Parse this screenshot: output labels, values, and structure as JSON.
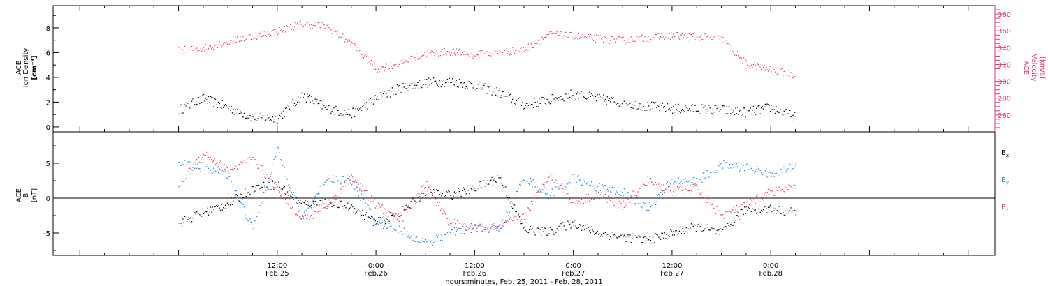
{
  "colors": {
    "black": "#000000",
    "blue": "#1e88e5",
    "red": "#e8386b"
  },
  "xaxis": {
    "tick_times": [
      "12:00",
      "0:00",
      "12:00",
      "0:00",
      "12:00",
      "0:00"
    ],
    "tick_dates": [
      "Feb.25",
      "Feb.26",
      "Feb.26",
      "Feb.27",
      "Feb.27",
      "Feb.28"
    ],
    "label": "hours:minutes, Feb. 25, 2011 - Feb. 28, 2011",
    "range_hours": [
      -15.25,
      99.25
    ],
    "ticks_hours": [
      12,
      24,
      36,
      48,
      60,
      72
    ]
  },
  "chart_data": [
    {
      "type": "scatter",
      "panel": "top",
      "ylabel_left": [
        "ACE",
        "Ion Density",
        "[cm⁻³]"
      ],
      "ylabel_right": [
        "ACE",
        "Velocity",
        "[km/s]"
      ],
      "left_axis": {
        "ylim": [
          -0.4,
          9.8
        ],
        "ticks": [
          0,
          2,
          4,
          6,
          8
        ]
      },
      "right_axis": {
        "ylim": [
          240,
          390
        ],
        "ticks": [
          260,
          280,
          300,
          320,
          340,
          360,
          380
        ]
      },
      "series": [
        {
          "axis": "left",
          "color": "#000000",
          "x": [
            0,
            3,
            6,
            9,
            12,
            15,
            18,
            21,
            24,
            27,
            30,
            33,
            36,
            39,
            42,
            45,
            48,
            51,
            54,
            57,
            60,
            63,
            66,
            69,
            72,
            75
          ],
          "y": [
            1.4,
            2.3,
            1.6,
            0.8,
            0.7,
            2.6,
            1.5,
            1.1,
            2.3,
            3.2,
            3.6,
            3.7,
            3.4,
            2.8,
            1.8,
            2.2,
            2.7,
            2.3,
            2.0,
            1.7,
            1.5,
            1.5,
            1.4,
            1.2,
            1.6,
            0.8
          ]
        },
        {
          "axis": "right",
          "color": "#e8386b",
          "x": [
            0,
            3,
            6,
            9,
            12,
            15,
            18,
            21,
            24,
            27,
            30,
            33,
            36,
            39,
            42,
            45,
            48,
            51,
            54,
            57,
            60,
            63,
            66,
            69,
            72,
            75
          ],
          "y": [
            337,
            340,
            348,
            354,
            360,
            369,
            366,
            345,
            315,
            322,
            333,
            336,
            332,
            335,
            338,
            356,
            354,
            351,
            349,
            352,
            355,
            353,
            351,
            321,
            314,
            308
          ]
        }
      ]
    },
    {
      "type": "scatter",
      "panel": "bottom",
      "ylabel_left": [
        "ACE",
        "B",
        "[nT]"
      ],
      "ylim": [
        -8.2,
        9.5
      ],
      "ticks": [
        -5,
        0,
        5
      ],
      "legend": [
        "B",
        "B",
        "B"
      ],
      "legend_subscripts": [
        "x",
        "y",
        "z"
      ],
      "series": [
        {
          "color": "#000000",
          "x": [
            0,
            3,
            6,
            9,
            12,
            15,
            18,
            21,
            24,
            27,
            30,
            33,
            36,
            39,
            42,
            45,
            48,
            51,
            54,
            57,
            60,
            63,
            66,
            69,
            72,
            75
          ],
          "y": [
            -3.5,
            -2.0,
            -0.8,
            1.5,
            2.0,
            -0.8,
            -0.5,
            -1.2,
            -3.5,
            -2.0,
            1.0,
            0.5,
            1.5,
            3.0,
            -4.5,
            -4.8,
            -3.5,
            -5.0,
            -5.5,
            -6.0,
            -5.0,
            -4.0,
            -5.0,
            -1.5,
            -1.5,
            -2.0
          ]
        },
        {
          "color": "#1e88e5",
          "x": [
            0,
            3,
            6,
            9,
            12,
            15,
            18,
            21,
            24,
            27,
            30,
            33,
            36,
            39,
            42,
            45,
            48,
            51,
            54,
            57,
            60,
            63,
            66,
            69,
            72,
            75
          ],
          "y": [
            5.0,
            4.5,
            3.5,
            -4.5,
            7.0,
            -3.0,
            3.0,
            2.5,
            -3.5,
            -4.5,
            -6.5,
            -5.0,
            -4.0,
            -4.5,
            3.0,
            0.5,
            3.0,
            1.5,
            1.0,
            -1.5,
            2.5,
            2.5,
            4.8,
            4.5,
            3.5,
            4.5
          ]
        },
        {
          "color": "#e8386b",
          "x": [
            0,
            3,
            6,
            9,
            12,
            15,
            18,
            21,
            24,
            27,
            30,
            33,
            36,
            39,
            42,
            45,
            48,
            51,
            54,
            57,
            60,
            63,
            66,
            69,
            72,
            75
          ],
          "y": [
            2.0,
            6.5,
            4.0,
            5.5,
            1.5,
            -3.0,
            -1.5,
            3.2,
            -1.0,
            -3.0,
            2.0,
            -3.5,
            -4.5,
            -4.0,
            -2.5,
            3.5,
            -0.5,
            0.5,
            -1.0,
            2.5,
            1.0,
            1.5,
            -2.5,
            -1.0,
            1.0,
            1.5
          ]
        }
      ]
    }
  ]
}
